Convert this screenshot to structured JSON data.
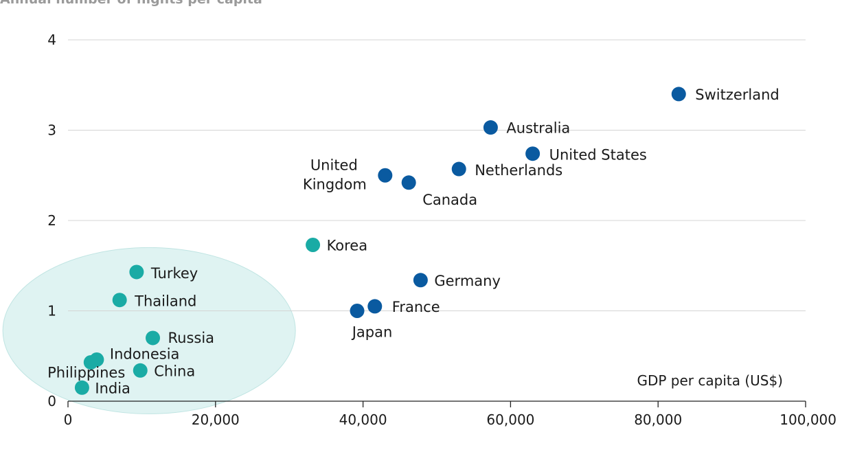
{
  "chart_data": {
    "type": "scatter",
    "title": "",
    "ylabel": "Annual number of flights per capita",
    "xlabel": "GDP per capita (US$)",
    "xlim": [
      0,
      100000
    ],
    "ylim": [
      0,
      4
    ],
    "x_ticks": [
      0,
      20000,
      40000,
      60000,
      80000,
      100000
    ],
    "x_tick_labels": [
      "0",
      "20,000",
      "40,000",
      "60,000",
      "80,000",
      "100,000"
    ],
    "y_ticks": [
      0,
      1,
      2,
      3,
      4
    ],
    "y_tick_labels": [
      "0",
      "1",
      "2",
      "3",
      "4"
    ],
    "grid": "horizontal",
    "colors": {
      "developed": "#0a5aa0",
      "emerging": "#1aaba5",
      "highlight": "#dff3f2",
      "grid": "#d4d4d4"
    },
    "highlight_region": "emerging markets ellipse",
    "points": [
      {
        "label": "Switzerland",
        "x": 82800,
        "y": 3.4,
        "group": "developed"
      },
      {
        "label": "Australia",
        "x": 57300,
        "y": 3.03,
        "group": "developed"
      },
      {
        "label": "United States",
        "x": 63000,
        "y": 2.74,
        "group": "developed"
      },
      {
        "label": "Netherlands",
        "x": 53000,
        "y": 2.57,
        "group": "developed"
      },
      {
        "label": "United Kingdom",
        "x": 43000,
        "y": 2.5,
        "group": "developed"
      },
      {
        "label": "Canada",
        "x": 46200,
        "y": 2.42,
        "group": "developed"
      },
      {
        "label": "Germany",
        "x": 47800,
        "y": 1.34,
        "group": "developed"
      },
      {
        "label": "France",
        "x": 41600,
        "y": 1.05,
        "group": "developed"
      },
      {
        "label": "Japan",
        "x": 39200,
        "y": 1.0,
        "group": "developed"
      },
      {
        "label": "Korea",
        "x": 33200,
        "y": 1.73,
        "group": "emerging"
      },
      {
        "label": "Turkey",
        "x": 9300,
        "y": 1.43,
        "group": "emerging"
      },
      {
        "label": "Thailand",
        "x": 7000,
        "y": 1.12,
        "group": "emerging"
      },
      {
        "label": "Russia",
        "x": 11500,
        "y": 0.7,
        "group": "emerging"
      },
      {
        "label": "Indonesia",
        "x": 3900,
        "y": 0.46,
        "group": "emerging"
      },
      {
        "label": "Philippines",
        "x": 3100,
        "y": 0.43,
        "group": "emerging"
      },
      {
        "label": "China",
        "x": 9800,
        "y": 0.34,
        "group": "emerging"
      },
      {
        "label": "India",
        "x": 1900,
        "y": 0.15,
        "group": "emerging"
      }
    ]
  }
}
